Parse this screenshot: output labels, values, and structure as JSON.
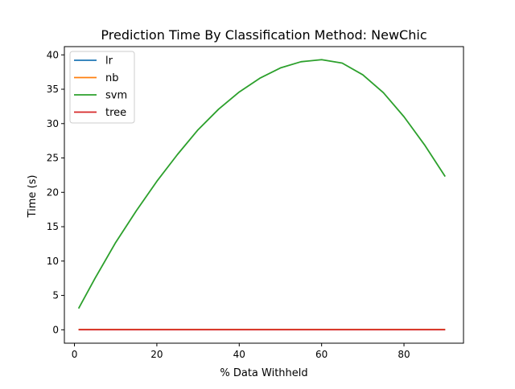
{
  "chart_data": {
    "type": "line",
    "title": "Prediction Time By Classification Method: NewChic",
    "xlabel": "% Data Withheld",
    "ylabel": "Time (s)",
    "xlim": [
      -2.45,
      94.45
    ],
    "ylim": [
      -1.95,
      41.2
    ],
    "xticks": [
      0,
      20,
      40,
      60,
      80
    ],
    "yticks": [
      0,
      5,
      10,
      15,
      20,
      25,
      30,
      35,
      40
    ],
    "grid": false,
    "legend_position": "top-left",
    "series": [
      {
        "name": "lr",
        "color": "#1f77b4",
        "x": [
          1,
          10,
          20,
          30,
          40,
          50,
          60,
          70,
          80,
          90
        ],
        "y": [
          0.02,
          0.02,
          0.02,
          0.02,
          0.02,
          0.02,
          0.02,
          0.02,
          0.02,
          0.02
        ]
      },
      {
        "name": "nb",
        "color": "#ff7f0e",
        "x": [
          1,
          10,
          20,
          30,
          40,
          50,
          60,
          70,
          80,
          90
        ],
        "y": [
          0.03,
          0.03,
          0.03,
          0.03,
          0.03,
          0.03,
          0.03,
          0.03,
          0.03,
          0.03
        ]
      },
      {
        "name": "svm",
        "color": "#2ca02c",
        "x": [
          1,
          5,
          10,
          15,
          20,
          25,
          30,
          35,
          40,
          45,
          50,
          55,
          60,
          65,
          70,
          75,
          80,
          85,
          90
        ],
        "y": [
          3.1,
          7.5,
          12.7,
          17.3,
          21.6,
          25.5,
          29.1,
          32.1,
          34.6,
          36.6,
          38.1,
          39.0,
          39.3,
          38.8,
          37.1,
          34.5,
          31.0,
          26.9,
          22.3
        ]
      },
      {
        "name": "tree",
        "color": "#d62728",
        "x": [
          1,
          10,
          20,
          30,
          40,
          50,
          60,
          70,
          80,
          90
        ],
        "y": [
          0.01,
          0.01,
          0.01,
          0.01,
          0.01,
          0.01,
          0.01,
          0.01,
          0.01,
          0.01
        ]
      }
    ]
  }
}
